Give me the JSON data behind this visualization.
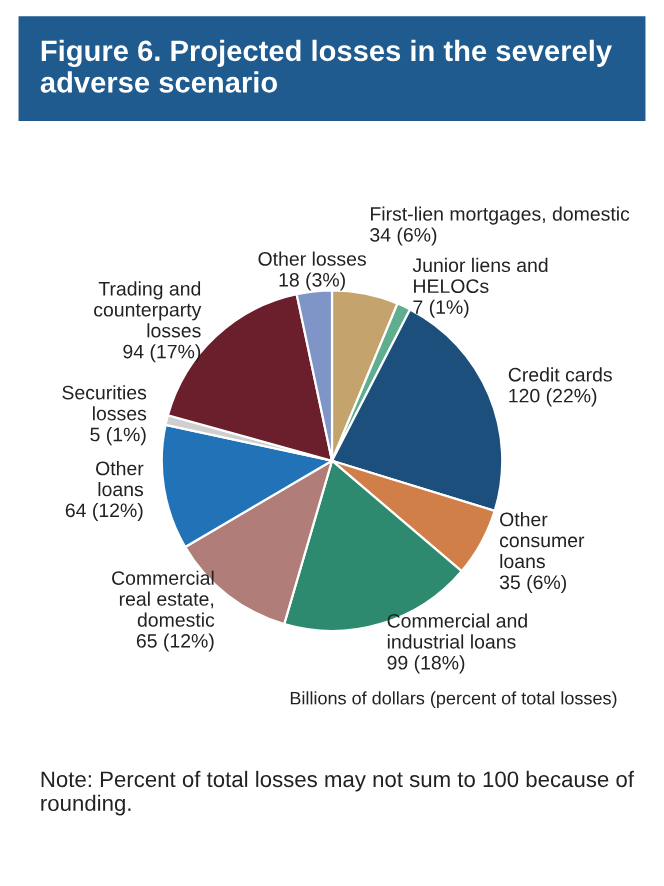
{
  "chart_data": {
    "type": "pie",
    "title": "Figure 6. Projected losses in the severely adverse scenario",
    "categories": [
      "First-lien mortgages, domestic",
      "Junior liens and\nHELOCs",
      "Credit cards",
      "Other\nconsumer\nloans",
      "Commercial and\nindustrial loans",
      "Commercial\nreal estate,\ndomestic",
      "Other\nloans",
      "Securities\nlosses",
      "Trading and\ncounterparty\nlosses",
      "Other losses"
    ],
    "values": [
      34,
      7,
      120,
      35,
      99,
      65,
      64,
      5,
      94,
      18
    ],
    "value_labels": [
      "34 (6%)",
      "7 (1%)",
      "120 (22%)",
      "35 (6%)",
      "99 (18%)",
      "65 (12%)",
      "64 (12%)",
      "5 (1%)",
      "94 (17%)",
      "18 (3%)"
    ],
    "colors": [
      "#c4a36c",
      "#5fae8f",
      "#1d4f7c",
      "#d17f48",
      "#2e8a6e",
      "#b07d78",
      "#2272b8",
      "#cfcfcf",
      "#6b1e2b",
      "#7f95c8"
    ],
    "annotations": [
      "Billions of dollars (percent of total losses)",
      "Note: Percent of total losses may not sum to 100 because of rounding."
    ]
  }
}
